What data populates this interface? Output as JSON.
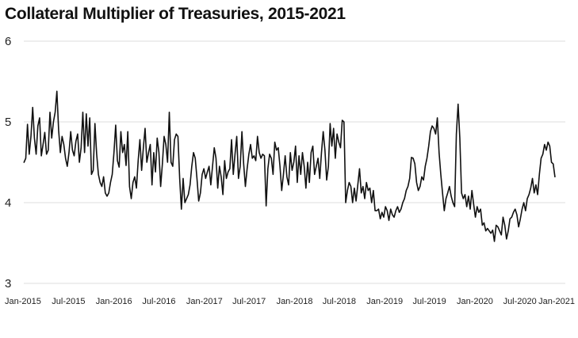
{
  "chart_data": {
    "type": "line",
    "title": "Collateral Multiplier of Treasuries, 2015-2021",
    "xlabel": "",
    "ylabel": "",
    "ylim": [
      3,
      6
    ],
    "yticks": [
      3,
      4,
      5,
      6
    ],
    "xlim": [
      "2015-01",
      "2021-01"
    ],
    "xtick_labels": [
      "Jan-2015",
      "Jul-2015",
      "Jan-2016",
      "Jul-2016",
      "Jan-2017",
      "Jul-2017",
      "Jan-2018",
      "Jul-2018",
      "Jan-2019",
      "Jul-2019",
      "Jan-2020",
      "Jul-2020",
      "Jan-2021"
    ],
    "grid": "horizontal",
    "line_color": "#111111",
    "grid_color": "#dddddd",
    "series": [
      {
        "frequency": "weekly",
        "x_start": "2015-01-02",
        "values": [
          4.5,
          4.55,
          4.97,
          4.6,
          4.82,
          5.18,
          4.8,
          4.6,
          4.95,
          5.05,
          4.58,
          4.72,
          4.87,
          4.6,
          4.65,
          5.12,
          4.8,
          5.0,
          5.12,
          5.38,
          4.9,
          4.62,
          4.82,
          4.72,
          4.55,
          4.45,
          4.62,
          4.88,
          4.65,
          4.58,
          4.76,
          4.85,
          4.5,
          4.68,
          5.12,
          4.62,
          5.1,
          4.7,
          5.05,
          4.35,
          4.4,
          4.98,
          4.6,
          4.35,
          4.25,
          4.2,
          4.32,
          4.12,
          4.08,
          4.12,
          4.25,
          4.35,
          4.62,
          4.96,
          4.52,
          4.44,
          4.88,
          4.62,
          4.72,
          4.46,
          4.88,
          4.2,
          4.05,
          4.25,
          4.32,
          4.18,
          4.52,
          4.78,
          4.4,
          4.68,
          4.92,
          4.5,
          4.62,
          4.72,
          4.22,
          4.62,
          4.38,
          4.8,
          4.62,
          4.2,
          4.48,
          4.82,
          4.72,
          4.5,
          5.12,
          4.5,
          4.45,
          4.78,
          4.85,
          4.82,
          4.3,
          3.92,
          4.3,
          4.0,
          4.05,
          4.1,
          4.22,
          4.45,
          4.62,
          4.55,
          4.3,
          4.02,
          4.12,
          4.35,
          4.42,
          4.3,
          4.38,
          4.45,
          4.22,
          4.45,
          4.68,
          4.55,
          4.18,
          4.45,
          4.32,
          4.1,
          4.52,
          4.3,
          4.38,
          4.42,
          4.78,
          4.35,
          4.6,
          4.82,
          4.3,
          4.45,
          4.88,
          4.48,
          4.2,
          4.42,
          4.6,
          4.72,
          4.55,
          4.58,
          4.52,
          4.82,
          4.62,
          4.55,
          4.6,
          4.58,
          3.96,
          4.42,
          4.6,
          4.55,
          4.35,
          4.75,
          4.65,
          4.68,
          4.45,
          4.15,
          4.35,
          4.58,
          4.32,
          4.22,
          4.62,
          4.4,
          4.5,
          4.7,
          4.25,
          4.58,
          4.35,
          4.62,
          4.45,
          4.18,
          4.5,
          4.25,
          4.62,
          4.7,
          4.35,
          4.45,
          4.55,
          4.3,
          4.62,
          4.88,
          4.65,
          4.28,
          4.45,
          4.98,
          4.7,
          4.92,
          4.55,
          4.85,
          4.75,
          4.68,
          5.02,
          5.0,
          4.0,
          4.15,
          4.25,
          4.2,
          4.0,
          4.18,
          4.02,
          4.22,
          4.42,
          4.12,
          4.2,
          4.05,
          4.25,
          4.15,
          4.18,
          4.0,
          4.15,
          3.9,
          3.9,
          3.92,
          3.8,
          3.88,
          3.82,
          3.95,
          3.9,
          3.78,
          3.92,
          3.85,
          3.82,
          3.9,
          3.95,
          3.88,
          3.92,
          4.0,
          4.05,
          4.15,
          4.2,
          4.3,
          4.56,
          4.55,
          4.48,
          4.25,
          4.15,
          4.2,
          4.32,
          4.28,
          4.45,
          4.55,
          4.7,
          4.88,
          4.95,
          4.92,
          4.85,
          5.05,
          4.62,
          4.35,
          4.12,
          3.9,
          4.05,
          4.12,
          4.2,
          4.08,
          4.0,
          3.95,
          4.85,
          5.22,
          4.8,
          4.12,
          4.05,
          4.1,
          3.95,
          4.08,
          3.92,
          4.15,
          3.98,
          3.82,
          3.95,
          3.88,
          3.92,
          3.72,
          3.75,
          3.65,
          3.68,
          3.65,
          3.62,
          3.66,
          3.52,
          3.72,
          3.7,
          3.65,
          3.6,
          3.82,
          3.72,
          3.55,
          3.65,
          3.8,
          3.82,
          3.88,
          3.92,
          3.85,
          3.7,
          3.8,
          3.92,
          4.0,
          3.9,
          4.05,
          4.1,
          4.18,
          4.3,
          4.12,
          4.22,
          4.1,
          4.35,
          4.55,
          4.6,
          4.72,
          4.65,
          4.75,
          4.7,
          4.5,
          4.48,
          4.32
        ]
      }
    ]
  }
}
